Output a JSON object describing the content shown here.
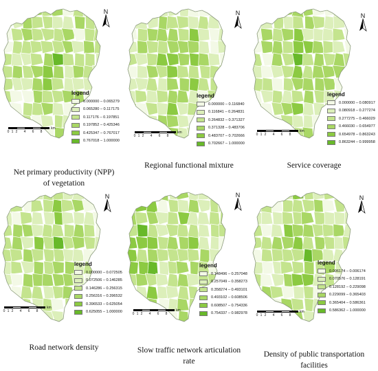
{
  "north_label": "N",
  "scale": {
    "ticks": [
      "0",
      "1",
      "2",
      "4",
      "6",
      "8"
    ],
    "unit": "km"
  },
  "colors": [
    "#f3f9e6",
    "#dcefba",
    "#c4e48e",
    "#a9d765",
    "#8cca42",
    "#68b92a"
  ],
  "panels": [
    {
      "legend_title": "legend",
      "legend": [
        "0.000000 – 0.065279",
        "0.065280 – 0.117175",
        "0.117176 – 0.197851",
        "0.197852 – 0.425346",
        "0.425347 – 0.767017",
        "0.767018 – 1.000000"
      ],
      "caption": [
        "Net primary productivity (NPP)",
        "of vegetation"
      ]
    },
    {
      "legend_title": "legend",
      "legend": [
        "0.000000 – 0.116840",
        "0.116841 – 0.264831",
        "0.264832 – 0.371327",
        "0.371328 – 0.483706",
        "0.483707 – 0.702666",
        "0.702667 – 1.000000"
      ],
      "caption": [
        "Regional functional mixture"
      ]
    },
    {
      "legend_title": "legend",
      "legend": [
        "0.000000 – 0.080917",
        "0.080918 – 0.277274",
        "0.277275 – 0.466029",
        "0.466030 – 0.654977",
        "0.654978 – 0.863243",
        "0.863244 – 0.999958"
      ],
      "caption": [
        "Service coverage"
      ]
    },
    {
      "legend_title": "legend",
      "legend": [
        "0.000000 – 0.072505",
        "0.072506 – 0.146285",
        "0.146286 – 0.256315",
        "0.256316 – 0.396532",
        "0.396533 – 0.625054",
        "0.625055 – 1.000000"
      ],
      "caption": [
        "Road network density"
      ]
    },
    {
      "legend_title": "legend",
      "legend": [
        "0.148496 – 0.257048",
        "0.257049 – 0.358273",
        "0.358274 – 0.493101",
        "0.493102 – 0.608506",
        "0.608507 – 0.754336",
        "0.754337 – 0.982978"
      ],
      "caption": [
        "Slow traffic network articulation",
        "rate"
      ]
    },
    {
      "legend_title": "legend",
      "legend": [
        "0.006174 – 0.006174",
        "0.070576 – 0.128191",
        "0.128192 – 0.229098",
        "0.229099 – 0.365403",
        "0.365404 – 0.586361",
        "0.586362 – 1.000000"
      ],
      "caption": [
        "Density of public transportation",
        "facilities"
      ]
    }
  ]
}
